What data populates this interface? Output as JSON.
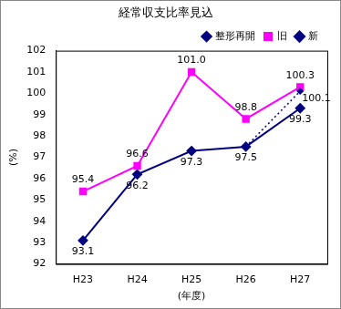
{
  "chart_data": {
    "type": "line",
    "title": "経常収支比率見込",
    "x_label": "(年度)",
    "y_label": "(%)",
    "categories": [
      "H23",
      "H24",
      "H25",
      "H26",
      "H27"
    ],
    "series": [
      {
        "name": "新",
        "color": "#000080",
        "marker": "diamond",
        "line_style": "solid",
        "values": [
          93.1,
          96.2,
          97.3,
          97.5,
          99.3
        ],
        "value_labels": [
          "93.1",
          "96.2",
          "97.3",
          "97.5",
          "99.3"
        ]
      },
      {
        "name": "旧",
        "color": "#ff00ff",
        "marker": "square",
        "line_style": "solid",
        "values": [
          95.4,
          96.6,
          101.0,
          98.8,
          100.3
        ],
        "value_labels": [
          "95.4",
          "96.6",
          "101.0",
          "98.8",
          "100.3"
        ]
      },
      {
        "name": "整形再開",
        "color": "#000080",
        "marker": "diamond",
        "line_style": "dotted",
        "values": [
          null,
          null,
          null,
          97.5,
          100.1
        ],
        "value_labels": [
          null,
          null,
          null,
          null,
          "100.1"
        ]
      }
    ],
    "ylim": [
      92,
      102
    ],
    "yticks": [
      92,
      93,
      94,
      95,
      96,
      97,
      98,
      99,
      100,
      101,
      102
    ],
    "grid": false,
    "legend": "top-right",
    "data_labels": true
  }
}
